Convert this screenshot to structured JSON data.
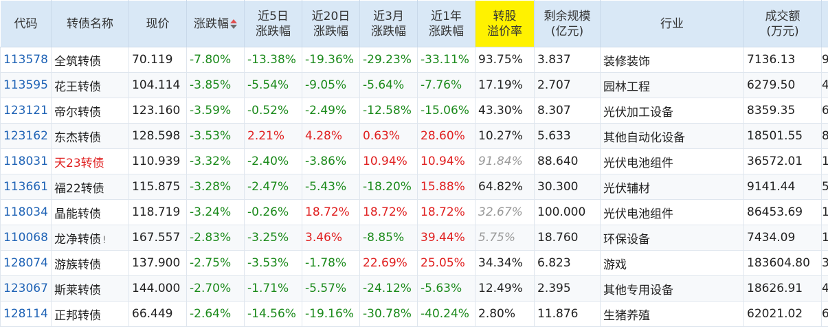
{
  "columns": {
    "code": "代码",
    "name": "转债名称",
    "price": "现价",
    "change": "涨跌幅",
    "d5_l1": "近5日",
    "d5_l2": "涨跌幅",
    "d20_l1": "近20日",
    "d20_l2": "涨跌幅",
    "m3_l1": "近3月",
    "m3_l2": "涨跌幅",
    "y1_l1": "近1年",
    "y1_l2": "涨跌幅",
    "prem_l1": "转股",
    "prem_l2": "溢价率",
    "scale_l1": "剩余规模",
    "scale_l2": "(亿元)",
    "industry": "行业",
    "volume_l1": "成交额",
    "volume_l2": "(万元)"
  },
  "rows": [
    {
      "code": "113578",
      "name": "全筑转债",
      "name_red": false,
      "flag": "",
      "price": "70.119",
      "change": "-7.80%",
      "d5": "-13.38%",
      "d20": "-19.36%",
      "m3": "-29.23%",
      "y1": "-33.11%",
      "premium": "93.75%",
      "premium_muted": false,
      "scale": "3.837",
      "industry": "装修装饰",
      "volume": "7136.13",
      "extra": "9"
    },
    {
      "code": "113595",
      "name": "花王转债",
      "name_red": false,
      "flag": "",
      "price": "104.114",
      "change": "-3.85%",
      "d5": "-5.54%",
      "d20": "-9.05%",
      "m3": "-5.64%",
      "y1": "-7.76%",
      "premium": "17.19%",
      "premium_muted": false,
      "scale": "2.707",
      "industry": "园林工程",
      "volume": "6279.50",
      "extra": "4"
    },
    {
      "code": "123121",
      "name": "帝尔转债",
      "name_red": false,
      "flag": "",
      "price": "123.160",
      "change": "-3.59%",
      "d5": "-0.52%",
      "d20": "-2.49%",
      "m3": "-12.58%",
      "y1": "-15.06%",
      "premium": "43.30%",
      "premium_muted": false,
      "scale": "8.307",
      "industry": "光伏加工设备",
      "volume": "8359.35",
      "extra": "6"
    },
    {
      "code": "123162",
      "name": "东杰转债",
      "name_red": false,
      "flag": "",
      "price": "128.598",
      "change": "-3.53%",
      "d5": "2.21%",
      "d20": "4.28%",
      "m3": "0.63%",
      "y1": "28.60%",
      "premium": "10.27%",
      "premium_muted": false,
      "scale": "5.633",
      "industry": "其他自动化设备",
      "volume": "18501.55",
      "extra": "8"
    },
    {
      "code": "118031",
      "name": "天23转债",
      "name_red": true,
      "flag": "",
      "price": "110.939",
      "change": "-3.32%",
      "d5": "-2.40%",
      "d20": "-3.86%",
      "m3": "10.94%",
      "y1": "10.94%",
      "premium": "91.84%",
      "premium_muted": true,
      "scale": "88.640",
      "industry": "光伏电池组件",
      "volume": "36572.01",
      "extra": "1"
    },
    {
      "code": "113661",
      "name": "福22转债",
      "name_red": false,
      "flag": "",
      "price": "115.875",
      "change": "-3.28%",
      "d5": "-2.47%",
      "d20": "-5.43%",
      "m3": "-18.20%",
      "y1": "15.88%",
      "premium": "64.82%",
      "premium_muted": false,
      "scale": "30.300",
      "industry": "光伏辅材",
      "volume": "9141.44",
      "extra": "5"
    },
    {
      "code": "118034",
      "name": "晶能转债",
      "name_red": false,
      "flag": "",
      "price": "118.719",
      "change": "-3.24%",
      "d5": "-0.26%",
      "d20": "18.72%",
      "m3": "18.72%",
      "y1": "18.72%",
      "premium": "32.67%",
      "premium_muted": true,
      "scale": "100.000",
      "industry": "光伏电池组件",
      "volume": "86453.69",
      "extra": "1"
    },
    {
      "code": "110068",
      "name": "龙净转债",
      "name_red": false,
      "flag": "!",
      "price": "167.557",
      "change": "-2.83%",
      "d5": "-3.25%",
      "d20": "3.46%",
      "m3": "-8.85%",
      "y1": "39.44%",
      "premium": "5.75%",
      "premium_muted": true,
      "scale": "18.760",
      "industry": "环保设备",
      "volume": "7434.09",
      "extra": "1"
    },
    {
      "code": "128074",
      "name": "游族转债",
      "name_red": false,
      "flag": "",
      "price": "137.900",
      "change": "-2.75%",
      "d5": "-3.53%",
      "d20": "-1.78%",
      "m3": "22.69%",
      "y1": "25.05%",
      "premium": "34.34%",
      "premium_muted": false,
      "scale": "6.823",
      "industry": "游戏",
      "volume": "183604.80",
      "extra": "3"
    },
    {
      "code": "123067",
      "name": "斯莱转债",
      "name_red": false,
      "flag": "",
      "price": "144.000",
      "change": "-2.70%",
      "d5": "-1.71%",
      "d20": "-5.57%",
      "m3": "-24.12%",
      "y1": "-5.63%",
      "premium": "12.49%",
      "premium_muted": false,
      "scale": "2.395",
      "industry": "其他专用设备",
      "volume": "18626.91",
      "extra": "4"
    },
    {
      "code": "128114",
      "name": "正邦转债",
      "name_red": false,
      "flag": "",
      "price": "66.449",
      "change": "-2.64%",
      "d5": "-14.56%",
      "d20": "-19.16%",
      "m3": "-30.78%",
      "y1": "-40.24%",
      "premium": "2.80%",
      "premium_muted": false,
      "scale": "11.876",
      "industry": "生猪养殖",
      "volume": "62021.02",
      "extra": "6"
    }
  ],
  "colors": {
    "header_bg": "#d9e8f6",
    "highlight_header": "#fff200",
    "up": "#e02020",
    "down": "#1b8a1b",
    "code": "#1f63b6",
    "muted": "#9a9a9a"
  }
}
